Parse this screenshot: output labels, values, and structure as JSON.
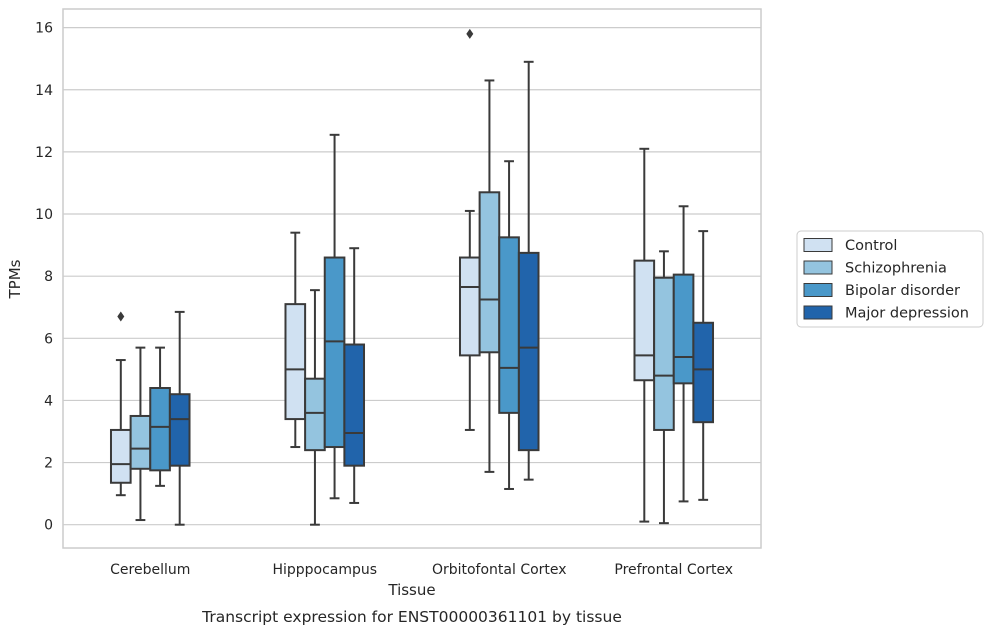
{
  "caption": "Transcript expression for ENST00000361101 by tissue",
  "chart_data": {
    "type": "boxplot",
    "title": "",
    "xlabel": "Tissue",
    "ylabel": "TPMs",
    "ylim": [
      -0.75,
      16.6
    ],
    "yticks": [
      0,
      2,
      4,
      6,
      8,
      10,
      12,
      14,
      16
    ],
    "grid": "horizontal",
    "legend_position": "right",
    "categories": [
      "Cerebellum",
      "Hipppocampus",
      "Orbitofontal Cortex",
      "Prefrontal Cortex"
    ],
    "series": [
      {
        "name": "Control",
        "color": "#d0e1f2",
        "boxes": [
          {
            "whislo": 0.95,
            "q1": 1.35,
            "med": 1.95,
            "q3": 3.05,
            "whishi": 5.3,
            "fliers": [
              6.7
            ]
          },
          {
            "whislo": 2.5,
            "q1": 3.4,
            "med": 5.0,
            "q3": 7.1,
            "whishi": 9.4,
            "fliers": []
          },
          {
            "whislo": 3.05,
            "q1": 5.45,
            "med": 7.65,
            "q3": 8.6,
            "whishi": 10.1,
            "fliers": [
              15.8
            ]
          },
          {
            "whislo": 0.1,
            "q1": 4.65,
            "med": 5.45,
            "q3": 8.5,
            "whishi": 12.1,
            "fliers": []
          }
        ]
      },
      {
        "name": "Schizophrenia",
        "color": "#94c4df",
        "boxes": [
          {
            "whislo": 0.15,
            "q1": 1.8,
            "med": 2.45,
            "q3": 3.5,
            "whishi": 5.7,
            "fliers": []
          },
          {
            "whislo": 0.0,
            "q1": 2.4,
            "med": 3.6,
            "q3": 4.7,
            "whishi": 7.55,
            "fliers": []
          },
          {
            "whislo": 1.7,
            "q1": 5.55,
            "med": 7.25,
            "q3": 10.7,
            "whishi": 14.3,
            "fliers": []
          },
          {
            "whislo": 0.05,
            "q1": 3.05,
            "med": 4.8,
            "q3": 7.95,
            "whishi": 8.8,
            "fliers": []
          }
        ]
      },
      {
        "name": "Bipolar disorder",
        "color": "#4a98c9",
        "boxes": [
          {
            "whislo": 1.25,
            "q1": 1.75,
            "med": 3.15,
            "q3": 4.4,
            "whishi": 5.7,
            "fliers": []
          },
          {
            "whislo": 0.85,
            "q1": 2.5,
            "med": 5.9,
            "q3": 8.6,
            "whishi": 12.55,
            "fliers": []
          },
          {
            "whislo": 1.15,
            "q1": 3.6,
            "med": 5.05,
            "q3": 9.25,
            "whishi": 11.7,
            "fliers": []
          },
          {
            "whislo": 0.75,
            "q1": 4.55,
            "med": 5.4,
            "q3": 8.05,
            "whishi": 10.25,
            "fliers": []
          }
        ]
      },
      {
        "name": "Major depression",
        "color": "#2164ab",
        "boxes": [
          {
            "whislo": 0.0,
            "q1": 1.9,
            "med": 3.4,
            "q3": 4.2,
            "whishi": 6.85,
            "fliers": []
          },
          {
            "whislo": 0.7,
            "q1": 1.9,
            "med": 2.95,
            "q3": 5.8,
            "whishi": 8.9,
            "fliers": []
          },
          {
            "whislo": 1.45,
            "q1": 2.4,
            "med": 5.7,
            "q3": 8.75,
            "whishi": 14.9,
            "fliers": []
          },
          {
            "whislo": 0.8,
            "q1": 3.3,
            "med": 5.0,
            "q3": 6.5,
            "whishi": 9.45,
            "fliers": []
          }
        ]
      }
    ]
  }
}
